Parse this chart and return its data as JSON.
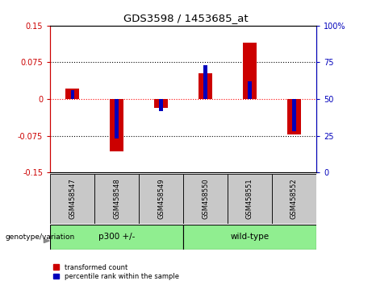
{
  "title": "GDS3598 / 1453685_at",
  "samples": [
    "GSM458547",
    "GSM458548",
    "GSM458549",
    "GSM458550",
    "GSM458551",
    "GSM458552"
  ],
  "red_values": [
    0.022,
    -0.107,
    -0.018,
    0.052,
    0.115,
    -0.072
  ],
  "blue_values_pct": [
    56,
    23,
    42,
    73,
    62,
    28
  ],
  "ylim_left": [
    -0.15,
    0.15
  ],
  "yticks_left": [
    -0.15,
    -0.075,
    0,
    0.075,
    0.15
  ],
  "ytick_labels_left": [
    "-0.15",
    "-0.075",
    "0",
    "0.075",
    "0.15"
  ],
  "ylim_right": [
    0,
    100
  ],
  "yticks_right": [
    0,
    25,
    50,
    75,
    100
  ],
  "ytick_labels_right": [
    "0",
    "25",
    "50",
    "75",
    "100%"
  ],
  "hlines_black": [
    0.075,
    -0.075
  ],
  "hline_red": 0,
  "red_bar_width": 0.3,
  "blue_bar_width": 0.08,
  "left_color": "#CC0000",
  "right_color": "#0000BB",
  "bg_color_plot": "#ffffff",
  "bg_color_label": "#c8c8c8",
  "group_color": "#90EE90",
  "group1_label": "p300 +/-",
  "group2_label": "wild-type",
  "genotype_label": "genotype/variation",
  "legend_red": "transformed count",
  "legend_blue": "percentile rank within the sample"
}
